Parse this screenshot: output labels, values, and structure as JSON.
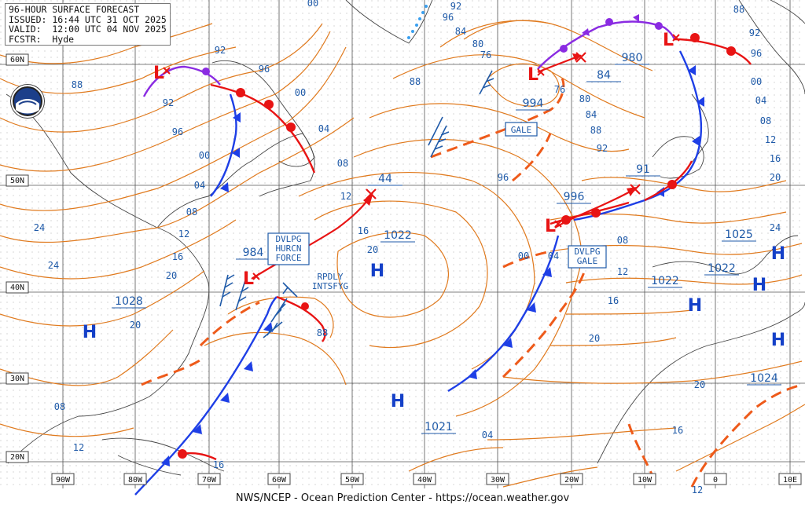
{
  "header": {
    "line1": "96-HOUR SURFACE FORECAST",
    "line2": "ISSUED: 16:44 UTC 31 OCT 2025",
    "line3": "VALID:  12:00 UTC 04 NOV 2025",
    "line4": "FCSTR:  Hyde"
  },
  "footer": "NWS/NCEP - Ocean Prediction Center - https://ocean.weather.gov",
  "logo_label": "NOAA",
  "lat_labels": [
    "60N",
    "50N",
    "40N",
    "30N",
    "20N"
  ],
  "lon_labels": [
    "90W",
    "80W",
    "70W",
    "60W",
    "50W",
    "40W",
    "30W",
    "20W",
    "10W",
    "0",
    "10E"
  ],
  "pressure_labels": [
    "984",
    "1028",
    "1022",
    "1021",
    "994",
    "980",
    "84",
    "996",
    "91",
    "1025",
    "1022",
    "1022",
    "1024",
    "44"
  ],
  "isobar_labels": [
    "92",
    "96",
    "00",
    "04",
    "08",
    "12",
    "16",
    "20",
    "24",
    "88",
    "92",
    "96",
    "00",
    "04",
    "08",
    "12",
    "16",
    "20",
    "24",
    "88",
    "92",
    "96",
    "00",
    "04",
    "08",
    "12",
    "16",
    "20",
    "80",
    "84",
    "88",
    "76",
    "76",
    "80",
    "84",
    "88",
    "92",
    "96",
    "00",
    "04",
    "08",
    "12",
    "16",
    "20",
    "12",
    "16",
    "20",
    "88",
    "92",
    "96",
    "00",
    "04",
    "08",
    "12",
    "16",
    "20",
    "24"
  ],
  "warnings": {
    "dvlpg_hurcn": [
      "DVLPG",
      "HURCN",
      "FORCE"
    ],
    "rpdly": [
      "RPDLY",
      "INTSFYG"
    ],
    "gale": [
      "GALE"
    ],
    "dvlpg_gale": [
      "DVLPG",
      "GALE"
    ]
  },
  "highs": [
    "H",
    "H",
    "H",
    "H",
    "H",
    "H",
    "H"
  ],
  "lows": [
    "L",
    "L",
    "L",
    "L",
    "L"
  ],
  "colors": {
    "isobar": "#e07a1e",
    "trough": "#ee5a1a",
    "cold_front": "#1e3fe6",
    "warm_front": "#e81414",
    "occluded": "#8a2be2",
    "label": "#1f5aa8",
    "grid": "#555555"
  }
}
